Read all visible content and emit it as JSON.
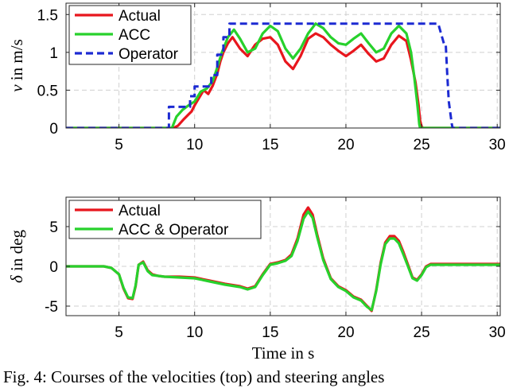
{
  "caption": "Fig. 4: Courses of the velocities (top) and steering angles",
  "chart_data": [
    {
      "type": "line",
      "ylabel_math": "v",
      "ylabel_rest": " in m/s",
      "xlabel": "",
      "xlim": [
        1.5,
        30.2
      ],
      "ylim": [
        0,
        1.65
      ],
      "xticks": [
        5,
        10,
        15,
        20,
        25,
        30
      ],
      "yticks": [
        0,
        0.5,
        1,
        1.5
      ],
      "ytick_labels": [
        "0",
        "0.5",
        "1",
        "1.5"
      ],
      "grid": true,
      "legend_position": "top-left",
      "series": [
        {
          "name": "Actual",
          "color": "#e8161d",
          "style": "solid",
          "x": [
            1.5,
            8.6,
            8.9,
            9.3,
            9.6,
            9.8,
            10.0,
            10.3,
            10.6,
            10.9,
            11.2,
            11.5,
            11.7,
            11.9,
            12.2,
            12.5,
            13.0,
            13.5,
            14.0,
            14.5,
            15.0,
            15.5,
            16.0,
            16.5,
            17.0,
            17.5,
            18.0,
            18.5,
            19.0,
            19.5,
            20.0,
            20.5,
            21.0,
            21.5,
            22.0,
            22.5,
            23.0,
            23.5,
            24.0,
            24.3,
            24.6,
            24.8,
            24.9,
            25.0,
            25.1,
            25.3,
            30.2
          ],
          "y": [
            0,
            0,
            0.03,
            0.12,
            0.18,
            0.22,
            0.3,
            0.4,
            0.5,
            0.45,
            0.56,
            0.72,
            0.88,
            1.0,
            1.12,
            1.2,
            1.05,
            0.95,
            1.1,
            1.18,
            1.2,
            1.1,
            0.88,
            0.78,
            0.95,
            1.18,
            1.25,
            1.2,
            1.1,
            1.02,
            0.95,
            1.02,
            1.1,
            0.98,
            0.88,
            0.92,
            1.1,
            1.22,
            1.15,
            0.9,
            0.6,
            0.3,
            0.1,
            0.02,
            0,
            0,
            0
          ]
        },
        {
          "name": "ACC",
          "color": "#27d12c",
          "style": "solid",
          "x": [
            1.5,
            8.5,
            8.8,
            9.2,
            9.6,
            10.0,
            10.4,
            10.8,
            11.2,
            11.5,
            11.8,
            12.2,
            12.6,
            13.0,
            13.5,
            14.0,
            14.5,
            15.0,
            15.5,
            16.0,
            16.5,
            17.0,
            17.5,
            18.0,
            18.5,
            19.0,
            19.5,
            20.0,
            20.5,
            21.0,
            21.5,
            22.0,
            22.5,
            23.0,
            23.5,
            24.0,
            24.3,
            24.5,
            24.7,
            24.8,
            24.85,
            24.9,
            30.2
          ],
          "y": [
            0,
            0,
            0.15,
            0.24,
            0.3,
            0.35,
            0.48,
            0.52,
            0.62,
            0.8,
            1.0,
            1.2,
            1.3,
            1.18,
            1.0,
            1.05,
            1.25,
            1.35,
            1.28,
            1.05,
            0.92,
            1.05,
            1.25,
            1.38,
            1.32,
            1.2,
            1.12,
            1.1,
            1.18,
            1.25,
            1.12,
            1.0,
            1.05,
            1.25,
            1.35,
            1.25,
            1.0,
            0.7,
            0.35,
            0.15,
            0.05,
            0,
            0
          ]
        },
        {
          "name": "Operator",
          "color": "#1c2ad2",
          "style": "dashed",
          "x": [
            1.5,
            8.3,
            8.3,
            9.7,
            9.7,
            10.0,
            10.0,
            11.1,
            11.1,
            11.5,
            11.5,
            11.9,
            11.9,
            12.3,
            12.3,
            26.1,
            26.5,
            26.6,
            26.7,
            26.8,
            27.0,
            27.05,
            30.2
          ],
          "y": [
            0,
            0,
            0.28,
            0.28,
            0.42,
            0.42,
            0.55,
            0.55,
            0.7,
            0.7,
            0.97,
            0.97,
            1.2,
            1.2,
            1.38,
            1.38,
            1.1,
            1.1,
            0.7,
            0.35,
            0.05,
            0,
            0
          ]
        }
      ]
    },
    {
      "type": "line",
      "ylabel_math": "δ",
      "ylabel_rest": " in deg",
      "xlabel": "Time in s",
      "xlim": [
        1.5,
        30.2
      ],
      "ylim": [
        -6.2,
        8.7
      ],
      "xticks": [
        5,
        10,
        15,
        20,
        25,
        30
      ],
      "yticks": [
        -5,
        0,
        5
      ],
      "ytick_labels": [
        "-5",
        "0",
        "5"
      ],
      "grid": true,
      "legend_position": "top-left",
      "series": [
        {
          "name": "Actual",
          "color": "#e8161d",
          "style": "solid",
          "x": [
            1.5,
            4.0,
            4.5,
            5.0,
            5.3,
            5.6,
            5.9,
            6.1,
            6.3,
            6.6,
            6.9,
            7.2,
            7.6,
            8.0,
            9.0,
            10.0,
            11.0,
            12.0,
            13.0,
            13.5,
            14.0,
            14.5,
            15.0,
            15.5,
            16.0,
            16.4,
            16.8,
            17.2,
            17.5,
            17.8,
            18.1,
            18.5,
            19.0,
            19.5,
            20.0,
            20.5,
            21.0,
            21.4,
            21.7,
            22.0,
            22.3,
            22.6,
            22.9,
            23.2,
            23.5,
            23.8,
            24.1,
            24.4,
            24.7,
            25.0,
            25.3,
            25.6,
            26.0,
            27.0,
            30.2
          ],
          "y": [
            0,
            0,
            -0.2,
            -1.0,
            -2.8,
            -4.0,
            -4.1,
            -2.5,
            0.2,
            0.6,
            -0.5,
            -1.0,
            -1.2,
            -1.3,
            -1.3,
            -1.4,
            -1.8,
            -2.2,
            -2.5,
            -2.8,
            -2.5,
            -1.0,
            0.3,
            0.5,
            0.8,
            1.5,
            3.5,
            6.5,
            7.4,
            6.5,
            4.0,
            1.0,
            -1.5,
            -2.5,
            -3.0,
            -3.8,
            -4.2,
            -5.0,
            -5.6,
            -3.0,
            0.5,
            3.0,
            3.8,
            3.8,
            3.2,
            1.8,
            0.2,
            -1.4,
            -1.7,
            -1.0,
            0,
            0.3,
            0.3,
            0.3,
            0.3
          ]
        },
        {
          "name": "ACC & Operator",
          "color": "#27d12c",
          "style": "solid",
          "x": [
            1.5,
            4.0,
            4.5,
            5.0,
            5.3,
            5.6,
            5.9,
            6.1,
            6.3,
            6.6,
            6.9,
            7.2,
            7.6,
            8.0,
            9.0,
            10.0,
            11.0,
            12.0,
            13.0,
            13.5,
            14.0,
            14.5,
            15.0,
            15.5,
            16.0,
            16.4,
            16.8,
            17.2,
            17.5,
            17.8,
            18.1,
            18.5,
            19.0,
            19.5,
            20.0,
            20.5,
            21.0,
            21.4,
            21.7,
            22.0,
            22.3,
            22.6,
            22.9,
            23.2,
            23.5,
            23.8,
            24.1,
            24.4,
            24.7,
            25.0,
            25.3,
            25.6,
            26.0,
            27.0,
            30.2
          ],
          "y": [
            0,
            0,
            -0.2,
            -1.0,
            -2.7,
            -3.9,
            -4.0,
            -2.4,
            0.2,
            0.5,
            -0.6,
            -1.1,
            -1.2,
            -1.3,
            -1.4,
            -1.5,
            -1.9,
            -2.3,
            -2.6,
            -2.9,
            -2.6,
            -1.1,
            0.2,
            0.4,
            0.7,
            1.3,
            3.2,
            6.0,
            6.9,
            6.1,
            3.7,
            0.8,
            -1.6,
            -2.6,
            -3.1,
            -3.9,
            -4.3,
            -5.1,
            -5.5,
            -3.1,
            0.3,
            2.8,
            3.5,
            3.5,
            2.9,
            1.5,
            0.0,
            -1.5,
            -1.8,
            -1.1,
            -0.1,
            0.2,
            0.2,
            0.2,
            0.2
          ]
        }
      ]
    }
  ]
}
